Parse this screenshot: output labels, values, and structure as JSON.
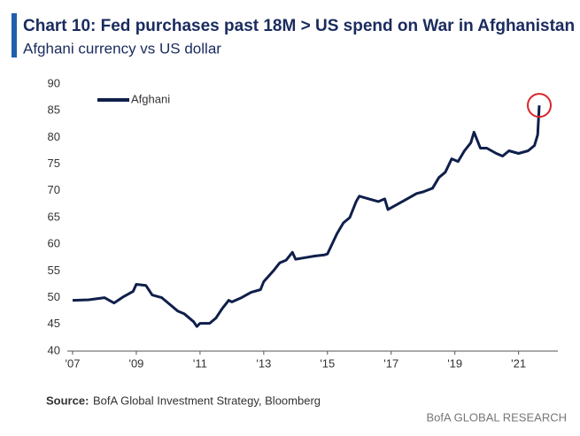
{
  "chart_data": {
    "type": "line",
    "title": "Chart 10: Fed purchases past 18M > US spend on War in Afghanistan",
    "subtitle": "Afghani currency vs US dollar",
    "source_label": "Source:",
    "source": "BofA Global Investment Strategy, Bloomberg",
    "footer": "BofA GLOBAL RESEARCH",
    "x": [
      2007.0,
      2007.5,
      2008.0,
      2008.3,
      2008.6,
      2008.9,
      2009.0,
      2009.3,
      2009.5,
      2009.8,
      2010.0,
      2010.3,
      2010.5,
      2010.8,
      2010.9,
      2011.0,
      2011.3,
      2011.5,
      2011.7,
      2011.9,
      2012.0,
      2012.3,
      2012.6,
      2012.9,
      2013.0,
      2013.3,
      2013.5,
      2013.7,
      2013.9,
      2014.0,
      2014.3,
      2014.6,
      2014.9,
      2015.0,
      2015.3,
      2015.5,
      2015.7,
      2015.9,
      2016.0,
      2016.3,
      2016.6,
      2016.8,
      2016.9,
      2017.2,
      2017.5,
      2017.8,
      2018.0,
      2018.3,
      2018.5,
      2018.7,
      2018.9,
      2019.1,
      2019.3,
      2019.5,
      2019.6,
      2019.8,
      2020.0,
      2020.3,
      2020.5,
      2020.7,
      2021.0,
      2021.3,
      2021.5,
      2021.6,
      2021.65
    ],
    "series": [
      {
        "name": "Afghani",
        "color": "#0f1f4b",
        "values": [
          49.5,
          49.6,
          50.0,
          49.0,
          50.2,
          51.2,
          52.5,
          52.3,
          50.5,
          50.0,
          49.0,
          47.5,
          47.0,
          45.5,
          44.6,
          45.2,
          45.2,
          46.2,
          48.0,
          49.5,
          49.2,
          50.0,
          51.0,
          51.5,
          53.0,
          55.0,
          56.5,
          57.0,
          58.5,
          57.2,
          57.5,
          57.8,
          58.0,
          58.2,
          62.0,
          64.0,
          65.0,
          68.0,
          69.0,
          68.5,
          68.0,
          68.5,
          66.5,
          67.5,
          68.5,
          69.5,
          69.8,
          70.5,
          72.5,
          73.5,
          76.0,
          75.5,
          77.5,
          79.0,
          81.0,
          78.0,
          78.0,
          77.0,
          76.5,
          77.5,
          77.0,
          77.5,
          78.5,
          80.5,
          86.0
        ]
      }
    ],
    "xlim": [
      2007,
      2022.4
    ],
    "xticks": [
      {
        "value": 2007,
        "label": "'07"
      },
      {
        "value": 2009,
        "label": "'09"
      },
      {
        "value": 2011,
        "label": "'11"
      },
      {
        "value": 2013,
        "label": "'13"
      },
      {
        "value": 2015,
        "label": "'15"
      },
      {
        "value": 2017,
        "label": "'17"
      },
      {
        "value": 2019,
        "label": "'19"
      },
      {
        "value": 2021,
        "label": "'21"
      }
    ],
    "ylim": [
      40,
      90
    ],
    "yticks": [
      40,
      45,
      50,
      55,
      60,
      65,
      70,
      75,
      80,
      85,
      90
    ],
    "grid": false,
    "legend": "top-left"
  }
}
